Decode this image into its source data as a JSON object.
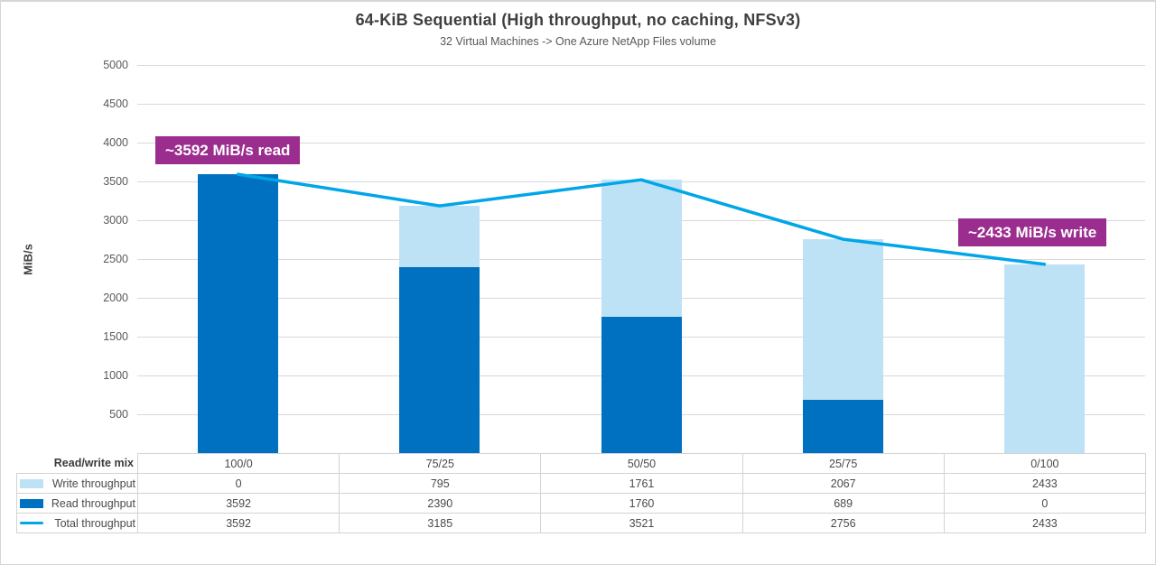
{
  "title": "64-KiB Sequential (High throughput, no caching, NFSv3)",
  "subtitle": "32 Virtual Machines -> One Azure NetApp Files volume",
  "annotations": {
    "read": "~3592 MiB/s read",
    "write": "~2433 MiB/s write"
  },
  "chart_data": {
    "type": "bar",
    "subtype": "stacked-columns-with-total-line-and-data-table",
    "title": "64-KiB Sequential (High throughput, no caching, NFSv3)",
    "subtitle": "32 Virtual Machines -> One Azure NetApp Files volume",
    "categories": [
      "100/0",
      "75/25",
      "50/50",
      "25/75",
      "0/100"
    ],
    "series": [
      {
        "name": "Write throughput",
        "render": "bar",
        "stack": "top",
        "color": "#BEE2F5",
        "values": [
          0,
          795,
          1761,
          2067,
          2433
        ]
      },
      {
        "name": "Read throughput",
        "render": "bar",
        "stack": "bottom",
        "color": "#0070C0",
        "values": [
          3592,
          2390,
          1760,
          689,
          0
        ]
      },
      {
        "name": "Total throughput",
        "render": "line",
        "color": "#00A6E8",
        "values": [
          3592,
          3185,
          3521,
          2756,
          2433
        ]
      }
    ],
    "xlabel": "Read/write mix",
    "ylabel": "MiB/s",
    "ylim": [
      0,
      5000
    ],
    "ytick_step": 500,
    "grid": true,
    "legend_position": "data-table-left",
    "annotations": [
      "~3592 MiB/s read",
      "~2433 MiB/s write"
    ]
  },
  "colors": {
    "read_bar": "#0070C0",
    "write_bar": "#BEE2F5",
    "total_line": "#00A6E8",
    "annotation_bg": "#9B2D8F",
    "gridline": "#D9D9D9",
    "title_text": "#3F3F3F",
    "tick_text": "#595959",
    "table_border": "#D3D3D3"
  }
}
